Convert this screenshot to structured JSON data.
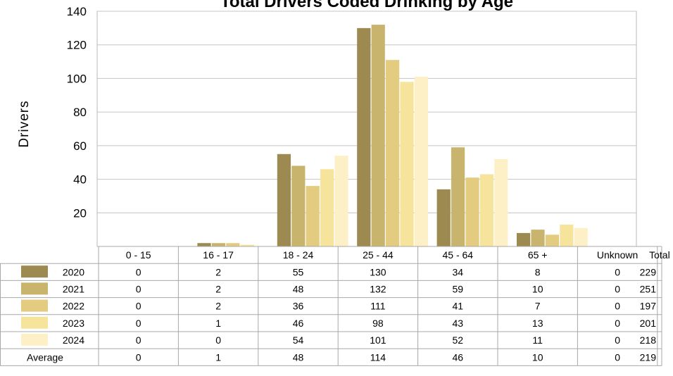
{
  "chart_data": {
    "type": "bar",
    "title": "Total Drivers Coded Drinking by Age",
    "ylabel": "Drivers",
    "xlabel": "",
    "ylim": [
      0,
      140
    ],
    "yticks": [
      20,
      40,
      60,
      80,
      100,
      120,
      140
    ],
    "grid": true,
    "legend": "table-left",
    "categories": [
      "0 - 15",
      "16 - 17",
      "18 - 24",
      "25 - 44",
      "45 - 64",
      "65 +",
      "Unknown"
    ],
    "total_header": "Total",
    "series": [
      {
        "name": "2020",
        "color": "#9c8a50",
        "values": [
          0,
          2,
          55,
          130,
          34,
          8,
          0
        ],
        "total": 229
      },
      {
        "name": "2021",
        "color": "#c9b46e",
        "values": [
          0,
          2,
          48,
          132,
          59,
          10,
          0
        ],
        "total": 251
      },
      {
        "name": "2022",
        "color": "#e3cc7f",
        "values": [
          0,
          2,
          36,
          111,
          41,
          7,
          0
        ],
        "total": 197
      },
      {
        "name": "2023",
        "color": "#f6e49d",
        "values": [
          0,
          1,
          46,
          98,
          43,
          13,
          0
        ],
        "total": 201
      },
      {
        "name": "2024",
        "color": "#fdf0c6",
        "values": [
          0,
          0,
          54,
          101,
          52,
          11,
          0
        ],
        "total": 218
      }
    ],
    "average": {
      "name": "Average",
      "values": [
        0,
        1,
        48,
        114,
        46,
        10,
        0
      ],
      "total": 219
    }
  }
}
